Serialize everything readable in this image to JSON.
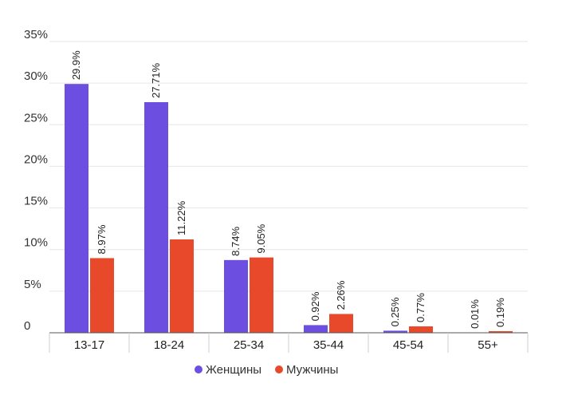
{
  "chart_data": {
    "type": "bar",
    "categories": [
      "13-17",
      "18-24",
      "25-34",
      "35-44",
      "45-54",
      "55+"
    ],
    "series": [
      {
        "name": "Женщины",
        "color": "#6c4fe0",
        "values": [
          29.9,
          27.71,
          8.74,
          0.92,
          0.25,
          0.01
        ],
        "labels": [
          "29.9%",
          "27.71%",
          "8.74%",
          "0.92%",
          "0.25%",
          "0.01%"
        ]
      },
      {
        "name": "Мужчины",
        "color": "#e8492a",
        "values": [
          8.97,
          11.22,
          9.05,
          2.26,
          0.77,
          0.19
        ],
        "labels": [
          "8.97%",
          "11.22%",
          "9.05%",
          "2.26%",
          "0.77%",
          "0.19%"
        ]
      }
    ],
    "y_ticks": [
      0,
      5,
      10,
      15,
      20,
      25,
      30,
      35
    ],
    "y_tick_labels": [
      "0",
      "5%",
      "10%",
      "15%",
      "20%",
      "25%",
      "30%",
      "35%"
    ],
    "ylim": [
      0,
      35
    ],
    "title": "",
    "xlabel": "",
    "ylabel": "",
    "grid": true,
    "legend_position": "bottom"
  }
}
